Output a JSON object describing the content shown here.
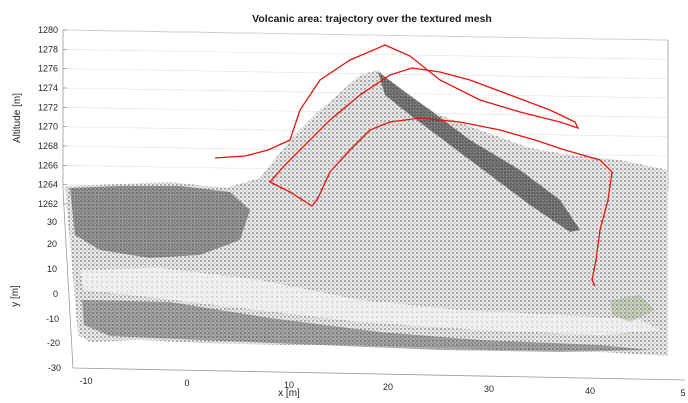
{
  "chart_data": {
    "type": "line",
    "title": "Volcanic area: trajectory over the textured mesh",
    "xlabel": "x [m]",
    "ylabel": "y [m]",
    "zlabel": "Altitude [m]",
    "x_ticks": [
      "-10",
      "0",
      "10",
      "20",
      "30",
      "40",
      "5"
    ],
    "y_ticks": [
      "30",
      "20",
      "10",
      "0",
      "-10",
      "-20",
      "-30"
    ],
    "z_ticks": [
      "1280",
      "1278",
      "1276",
      "1274",
      "1272",
      "1270",
      "1268",
      "1266",
      "1264",
      "1262"
    ],
    "xlim": [
      -10,
      50
    ],
    "ylim": [
      -30,
      30
    ],
    "zlim": [
      1262,
      1280
    ],
    "grid": true,
    "series": [
      {
        "color": "#e8130f",
        "points": [
          {
            "x": 3,
            "y": 15,
            "z": 1266
          },
          {
            "x": 8,
            "y": 15,
            "z": 1266.2
          },
          {
            "x": 11,
            "y": 16,
            "z": 1268
          },
          {
            "x": 14,
            "y": 15,
            "z": 1272
          },
          {
            "x": 18,
            "y": 14,
            "z": 1275
          },
          {
            "x": 21,
            "y": 14,
            "z": 1277
          },
          {
            "x": 24,
            "y": 14,
            "z": 1276
          },
          {
            "x": 28,
            "y": 13,
            "z": 1274
          },
          {
            "x": 32,
            "y": 12,
            "z": 1272
          },
          {
            "x": 35,
            "y": 11,
            "z": 1270
          },
          {
            "x": 37,
            "y": 11,
            "z": 1270
          },
          {
            "x": 30,
            "y": 12,
            "z": 1273
          },
          {
            "x": 24,
            "y": 13,
            "z": 1275
          },
          {
            "x": 18,
            "y": 14,
            "z": 1273
          },
          {
            "x": 12,
            "y": 14,
            "z": 1268
          },
          {
            "x": 8,
            "y": 14,
            "z": 1265
          },
          {
            "x": 10,
            "y": 13,
            "z": 1263
          },
          {
            "x": 12,
            "y": 13,
            "z": 1262.5
          },
          {
            "x": 15,
            "y": 12,
            "z": 1265
          },
          {
            "x": 20,
            "y": 11,
            "z": 1268
          },
          {
            "x": 25,
            "y": 10,
            "z": 1270
          },
          {
            "x": 30,
            "y": 9,
            "z": 1270
          },
          {
            "x": 36,
            "y": 8,
            "z": 1268
          },
          {
            "x": 39,
            "y": 7,
            "z": 1265
          },
          {
            "x": 41,
            "y": 6,
            "z": 1264
          },
          {
            "x": 41,
            "y": 4,
            "z": 1262
          },
          {
            "x": 40,
            "y": 2,
            "z": 1258
          },
          {
            "x": 39,
            "y": 1,
            "z": 1256
          }
        ]
      }
    ]
  }
}
